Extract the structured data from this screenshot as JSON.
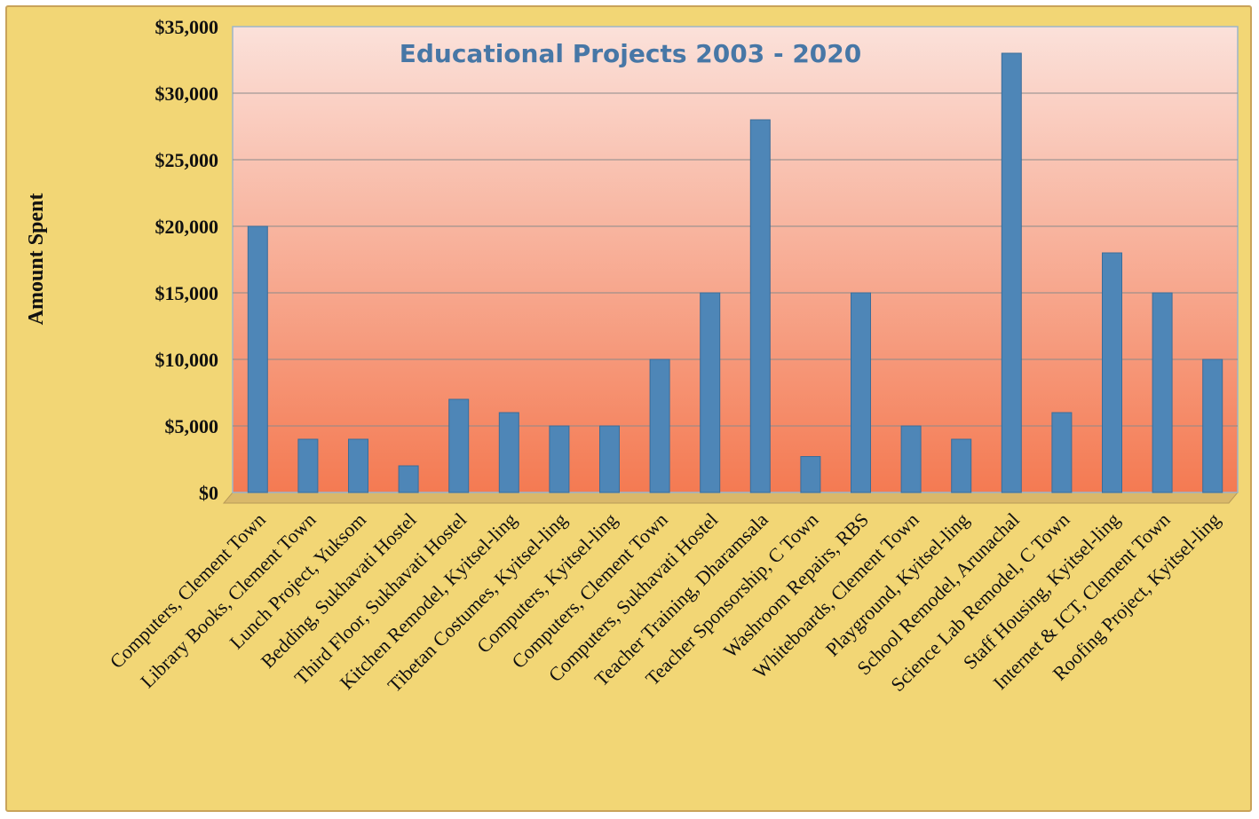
{
  "chart_data": {
    "type": "bar",
    "title": "Educational Projects 2003 - 2020",
    "ylabel": "Amount Spent",
    "xlabel": "",
    "ylim": [
      0,
      35000
    ],
    "ytick_step": 5000,
    "ytick_prefix": "$",
    "grid": true,
    "legend": "none",
    "colors": {
      "bar": "#4e86b7",
      "bar_edge": "#3a6d9a",
      "plot_top": "#fbe1da",
      "plot_bottom": "#f47a52",
      "frame": "#f2d675",
      "gridline": "#8a8a8a",
      "title": "#4777a6"
    },
    "categories": [
      "Computers, Clement Town",
      "Library Books, Clement Town",
      "Lunch Project, Yuksom",
      "Bedding, Sukhavati Hostel",
      "Third Floor, Sukhavati Hostel",
      "Kitchen Remodel, Kyitsel-ling",
      "Tibetan Costumes, Kyitsel-ling",
      "Computers, Kyitsel-ling",
      "Computers, Clement Town",
      "Computers, Sukhavati Hostel",
      "Teacher Training, Dharamsala",
      "Teacher Sponsorship, C Town",
      "Washroom Repairs, RBS",
      "Whiteboards, Clement Town",
      "Playground, Kyitsel-ling",
      "School Remodel, Arunachal",
      "Science Lab Remodel, C Town",
      "Staff Housing, Kyitsel-ling",
      "Internet & ICT, Clement Town",
      "Roofing Project, Kyitsel-ling"
    ],
    "values": [
      20000,
      4000,
      4000,
      2000,
      7000,
      6000,
      5000,
      5000,
      10000,
      15000,
      28000,
      2700,
      15000,
      5000,
      4000,
      33000,
      6000,
      18000,
      15000,
      10000
    ]
  }
}
